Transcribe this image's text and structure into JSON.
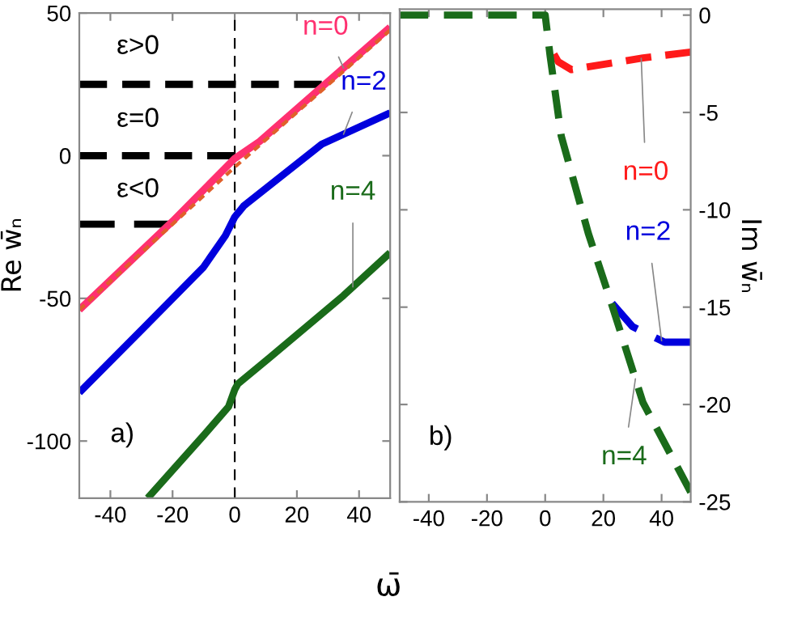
{
  "chart_data": [
    {
      "type": "line",
      "xlabel": "ω̄",
      "ylabel": "Re w̄ₙ",
      "xlim": [
        -50,
        50
      ],
      "ylim": [
        -120,
        50
      ],
      "xticks": [
        -40,
        -20,
        0,
        20,
        40
      ],
      "yticks": [
        -100,
        -50,
        0,
        50
      ],
      "grid": false,
      "legend": false,
      "line_style": "solid",
      "series": [
        {
          "color": "#000000",
          "line_style": "dashed",
          "x": [
            -50,
            28
          ],
          "values": [
            25,
            25
          ]
        },
        {
          "color": "#000000",
          "line_style": "dashed",
          "x": [
            -50,
            0
          ],
          "values": [
            0,
            0
          ]
        },
        {
          "color": "#000000",
          "line_style": "dashed",
          "x": [
            -50,
            -21
          ],
          "values": [
            -24,
            -24
          ]
        },
        {
          "name": "n=0",
          "color": "#ff3070",
          "x": [
            -50,
            -20,
            0,
            8,
            50
          ],
          "values": [
            -54,
            -23,
            -1,
            5,
            45
          ]
        },
        {
          "color": "#e0602a",
          "line_style": "dotted",
          "x": [
            -50,
            0,
            50
          ],
          "values": [
            -54,
            -4,
            44
          ]
        },
        {
          "name": "n=2",
          "color": "#0000dd",
          "x": [
            -50,
            -29,
            -10,
            -3,
            0,
            3,
            28,
            50
          ],
          "values": [
            -83,
            -60,
            -39,
            -28,
            -21.5,
            -17.5,
            4,
            15
          ]
        },
        {
          "name": "n=4",
          "color": "#1a6b1a",
          "x": [
            -28,
            -10,
            -2,
            0,
            1,
            11,
            35,
            50
          ],
          "values": [
            -120,
            -98,
            -88,
            -82,
            -80,
            -71,
            -49,
            -34
          ]
        }
      ],
      "ref_lines": [
        {
          "axis": "x",
          "value": 0,
          "color": "#000000",
          "line_style": "dashed"
        }
      ],
      "annotations": [
        "ε>0",
        "ε=0",
        "ε<0",
        "a)"
      ]
    },
    {
      "type": "line",
      "ylabel": "Im w̄ₙ",
      "xlim": [
        -50,
        50
      ],
      "ylim": [
        -25,
        0.3
      ],
      "xticks": [
        -40,
        -20,
        0,
        20,
        40
      ],
      "yticks": [
        -25,
        -20,
        -15,
        -10,
        -5,
        0
      ],
      "grid": false,
      "legend": false,
      "line_style": "dashed",
      "series": [
        {
          "name": "n=0",
          "color": "#ff1a1a",
          "x": [
            3,
            4.5,
            9,
            33.6,
            50
          ],
          "values": [
            -2,
            -2.4,
            -2.8,
            -2.2,
            -1.9
          ]
        },
        {
          "name": "n=2",
          "color": "#0000dd",
          "x": [
            23,
            30,
            41,
            50
          ],
          "values": [
            -14.8,
            -16,
            -16.8,
            -16.8
          ]
        },
        {
          "name": "n=4",
          "color": "#1a6b1a",
          "x": [
            -50,
            0,
            1.7,
            5.5,
            14.8,
            22.3,
            33.6,
            50
          ],
          "values": [
            0,
            0,
            -2.1,
            -6.2,
            -11.2,
            -14.6,
            -19.9,
            -24.5
          ]
        }
      ],
      "annotations": [
        "b)"
      ]
    }
  ]
}
